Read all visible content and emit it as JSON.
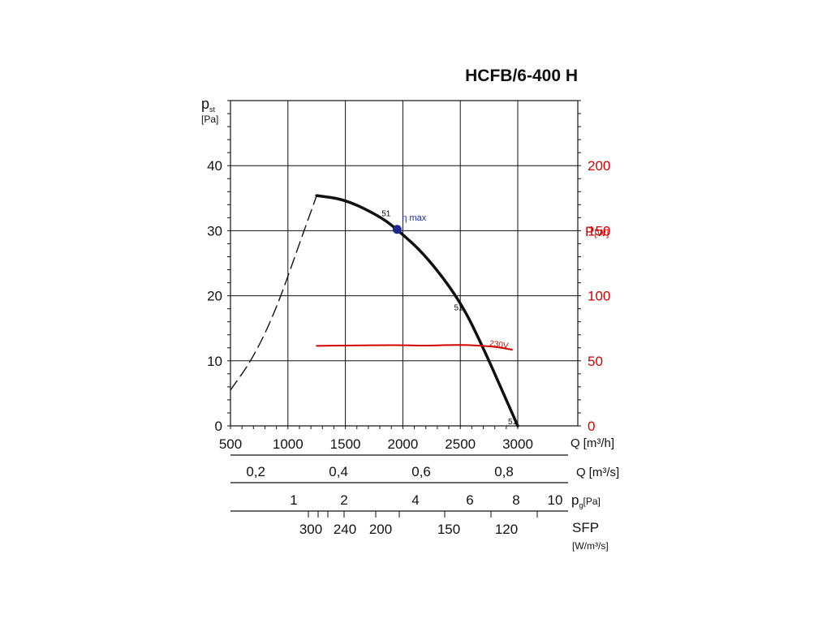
{
  "chart_data": {
    "type": "line",
    "title": "HCFB/6-400 H",
    "left_axis": {
      "label": "p",
      "label_sub": "st",
      "unit": "[Pa]",
      "ylim": [
        0,
        50
      ],
      "ticks": [
        0,
        10,
        20,
        30,
        40
      ]
    },
    "right_axis": {
      "label": "P",
      "unit": "[W]",
      "color": "#d40000",
      "ylim": [
        0,
        250
      ],
      "ticks": [
        0,
        50,
        100,
        150,
        200
      ]
    },
    "x_axis": {
      "label": "Q",
      "unit": "[m³/h]",
      "xlim": [
        500,
        3000
      ],
      "ticks": [
        500,
        1000,
        1500,
        2000,
        2500,
        3000
      ],
      "tick_labels": [
        "500",
        "1000",
        "1500",
        "2000",
        "2500",
        "3000"
      ]
    },
    "secondary_scales": [
      {
        "label": "Q",
        "unit": "[m³/s]",
        "ticks": [
          {
            "value": 0.2,
            "text": "0,2"
          },
          {
            "value": 0.4,
            "text": "0,4"
          },
          {
            "value": 0.6,
            "text": "0,6"
          },
          {
            "value": 0.8,
            "text": "0,8"
          }
        ]
      },
      {
        "label": "p",
        "label_sub": "g",
        "unit": "[Pa]",
        "ticks": [
          {
            "value": 1,
            "text": "1"
          },
          {
            "value": 2,
            "text": "2"
          },
          {
            "value": 4,
            "text": "4"
          },
          {
            "value": 6,
            "text": "6"
          },
          {
            "value": 8,
            "text": "8"
          },
          {
            "value": 10,
            "text": "10"
          }
        ]
      },
      {
        "label": "SFP",
        "unit": "[W/m³/s]",
        "ticks": [
          {
            "value": 300,
            "text": "300"
          },
          {
            "value": 240,
            "text": "240"
          },
          {
            "value": 200,
            "text": "200"
          },
          {
            "value": 150,
            "text": "150"
          },
          {
            "value": 120,
            "text": "120"
          }
        ]
      }
    ],
    "grid": true,
    "series": [
      {
        "axis": "left",
        "style": "dashed",
        "color": "#111111",
        "points": [
          [
            500,
            5.5
          ],
          [
            700,
            10.5
          ],
          [
            900,
            18
          ],
          [
            1100,
            28
          ],
          [
            1250,
            35.4
          ]
        ]
      },
      {
        "axis": "left",
        "style": "solid",
        "color": "#111111",
        "points": [
          [
            1250,
            35.4
          ],
          [
            1500,
            34.8
          ],
          [
            1800,
            32.2
          ],
          [
            1950,
            30.2
          ],
          [
            2200,
            26.2
          ],
          [
            2500,
            19.2
          ],
          [
            2700,
            12
          ],
          [
            2900,
            4
          ],
          [
            3000,
            0
          ]
        ]
      },
      {
        "name": "230V",
        "axis": "right",
        "style": "solid",
        "color": "#d40000",
        "points": [
          [
            1250,
            61.5
          ],
          [
            1500,
            61.8
          ],
          [
            2000,
            62.1
          ],
          [
            2200,
            61.5
          ],
          [
            2500,
            62.5
          ],
          [
            2800,
            61
          ],
          [
            2950,
            58.5
          ]
        ]
      }
    ],
    "annotations": [
      {
        "text": "51",
        "x": 1900,
        "y": 32.5
      },
      {
        "text": "η max",
        "x": 1950,
        "y": 30.2,
        "marker": true,
        "marker_color": "#1d2a8a"
      },
      {
        "text": "51",
        "x": 2530,
        "y": 18
      },
      {
        "text": "51",
        "x": 3000,
        "y": 0.5
      }
    ]
  }
}
